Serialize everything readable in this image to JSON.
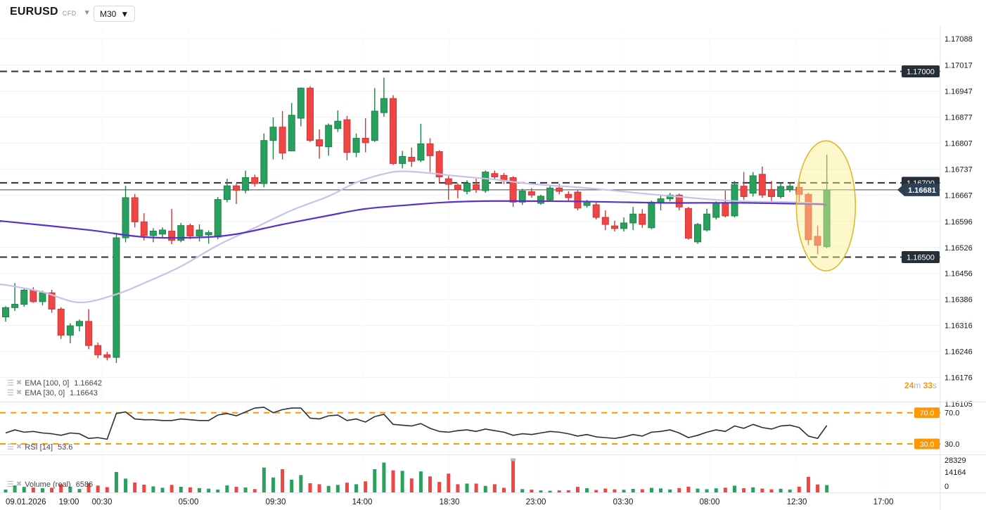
{
  "header": {
    "symbol": "EURUSD",
    "market_type": "CFD",
    "timeframe": "M30"
  },
  "timer": {
    "minutes": "24",
    "minutes_unit": "m",
    "seconds": "33",
    "seconds_unit": "s"
  },
  "panes": {
    "price": {
      "legend": [
        {
          "label": "EMA [100, 0]",
          "value": "1.16642"
        },
        {
          "label": "EMA [30, 0]",
          "value": "1.16643"
        }
      ],
      "axis_labels": [
        "1.17088",
        "1.17017",
        "1.16947",
        "1.16877",
        "1.16807",
        "1.16737",
        "1.16667",
        "1.16596",
        "1.16526",
        "1.16456",
        "1.16386",
        "1.16316",
        "1.16246",
        "1.16176",
        "1.16105"
      ],
      "level_tags": [
        {
          "text": "1.17000",
          "price": 1.17
        },
        {
          "text": "1.16700",
          "price": 1.167
        },
        {
          "text": "1.16500",
          "price": 1.165
        }
      ],
      "current_tag": {
        "text": "1.16681",
        "price": 1.16681
      }
    },
    "rsi": {
      "legend": {
        "label": "RSI [14]",
        "value": "53.6"
      },
      "level_tags": [
        {
          "text": "70.0",
          "value": 70
        },
        {
          "text": "30.0",
          "value": 30
        }
      ],
      "axis_labels": [
        {
          "text": "70.0",
          "value": 70
        },
        {
          "text": "30.0",
          "value": 30
        }
      ]
    },
    "volume": {
      "legend": {
        "label": "Volume (real)",
        "value": "6586"
      },
      "axis_labels": [
        {
          "text": "28329",
          "value": 28329
        },
        {
          "text": "14164",
          "value": 14164
        },
        {
          "text": "0",
          "value": 0
        }
      ]
    }
  },
  "time_axis": {
    "date_label": "09.01.2026",
    "labels": [
      "19:00",
      "00:30",
      "05:00",
      "09:30",
      "14:00",
      "18:30",
      "23:00",
      "03:30",
      "08:00",
      "12:30",
      "17:00"
    ]
  },
  "colors": {
    "up": "#2aa05f",
    "up_border": "#1f8049",
    "down": "#ef4545",
    "down_border": "#cf3737",
    "ema_fast": "#c9c2e8",
    "ema_slow": "#5a31c9",
    "level_line": "#2a2e39",
    "current_line": "#3c4653",
    "tag_dark": "#262e38",
    "tag_current": "#2e4154",
    "rsi_line": "#2a2e39",
    "rsi_level": "#ff9800",
    "tag_orange": "#ff9800",
    "grid": "#eef0f3",
    "divider": "#e0e3eb",
    "axis_text": "#131722",
    "highlight_fill": "rgba(250,240,140,0.45)",
    "highlight_stroke": "#ddb92e"
  },
  "chart_data": {
    "type": "candlestick",
    "title": "EURUSD CFD M30",
    "ylim": [
      1.16105,
      1.17088
    ],
    "grid": true,
    "y_axis_ticks": [
      1.17088,
      1.17017,
      1.16947,
      1.16877,
      1.16807,
      1.16737,
      1.16667,
      1.16596,
      1.16526,
      1.16456,
      1.16386,
      1.16316,
      1.16246,
      1.16176,
      1.16105
    ],
    "levels": [
      1.17,
      1.167,
      1.165
    ],
    "current_price": 1.16681,
    "rsi_levels": [
      70,
      30
    ],
    "rsi_current": 53.6,
    "volume_axis": [
      28329,
      14164,
      0
    ],
    "volume_current": 6586,
    "ema100_value": 1.16642,
    "ema30_value": 1.16643,
    "candles": [
      [
        1.16339,
        1.16368,
        1.16326,
        1.16364
      ],
      [
        1.16364,
        1.1643,
        1.16355,
        1.16373
      ],
      [
        1.16373,
        1.16415,
        1.16366,
        1.16411
      ],
      [
        1.16411,
        1.16419,
        1.16377,
        1.1638
      ],
      [
        1.1638,
        1.1641,
        1.1637,
        1.16404
      ],
      [
        1.16404,
        1.16412,
        1.1635,
        1.1636
      ],
      [
        1.1636,
        1.16365,
        1.1628,
        1.1629
      ],
      [
        1.1629,
        1.16322,
        1.16268,
        1.16315
      ],
      [
        1.16315,
        1.16332,
        1.163,
        1.16327
      ],
      [
        1.16327,
        1.1636,
        1.16252,
        1.16262
      ],
      [
        1.16262,
        1.1627,
        1.16228,
        1.16237
      ],
      [
        1.16237,
        1.16245,
        1.16222,
        1.1623
      ],
      [
        1.1623,
        1.16565,
        1.16215,
        1.16552
      ],
      [
        1.16552,
        1.16692,
        1.1654,
        1.1666
      ],
      [
        1.1666,
        1.1667,
        1.1658,
        1.16595
      ],
      [
        1.16595,
        1.16618,
        1.16545,
        1.16558
      ],
      [
        1.16558,
        1.16578,
        1.1654,
        1.1657
      ],
      [
        1.16562,
        1.1658,
        1.16552,
        1.16573
      ],
      [
        1.1657,
        1.1663,
        1.16535,
        1.16545
      ],
      [
        1.16545,
        1.16592,
        1.1654,
        1.16585
      ],
      [
        1.16585,
        1.1659,
        1.16548,
        1.16557
      ],
      [
        1.16557,
        1.16588,
        1.16542,
        1.16573
      ],
      [
        1.1656,
        1.16572,
        1.16536,
        1.16566
      ],
      [
        1.16554,
        1.16662,
        1.16548,
        1.16655
      ],
      [
        1.16655,
        1.16711,
        1.16648,
        1.16692
      ],
      [
        1.16692,
        1.16698,
        1.16643,
        1.1668
      ],
      [
        1.1668,
        1.16733,
        1.16672,
        1.16714
      ],
      [
        1.16714,
        1.16722,
        1.1669,
        1.16698
      ],
      [
        1.16698,
        1.16833,
        1.16688,
        1.16814
      ],
      [
        1.16814,
        1.16876,
        1.16763,
        1.1685
      ],
      [
        1.1685,
        1.16893,
        1.16763,
        1.1678
      ],
      [
        1.16786,
        1.16915,
        1.16786,
        1.16882
      ],
      [
        1.16874,
        1.16957,
        1.16852,
        1.16955
      ],
      [
        1.16955,
        1.1696,
        1.1681,
        1.16814
      ],
      [
        1.16816,
        1.16844,
        1.16765,
        1.16799
      ],
      [
        1.16797,
        1.1686,
        1.16773,
        1.16855
      ],
      [
        1.16846,
        1.16895,
        1.16837,
        1.16866
      ],
      [
        1.1687,
        1.1688,
        1.16761,
        1.16782
      ],
      [
        1.16782,
        1.16833,
        1.16769,
        1.1682
      ],
      [
        1.1682,
        1.16874,
        1.16782,
        1.16808
      ],
      [
        1.16814,
        1.16955,
        1.1681,
        1.16893
      ],
      [
        1.16889,
        1.16983,
        1.16878,
        1.16927
      ],
      [
        1.16927,
        1.16936,
        1.16748,
        1.16752
      ],
      [
        1.16752,
        1.16786,
        1.16739,
        1.16771
      ],
      [
        1.16769,
        1.16795,
        1.16743,
        1.16758
      ],
      [
        1.16761,
        1.16859,
        1.16756,
        1.16805
      ],
      [
        1.16805,
        1.1682,
        1.16729,
        1.16773
      ],
      [
        1.16784,
        1.16788,
        1.16701,
        1.16716
      ],
      [
        1.16711,
        1.16718,
        1.16654,
        1.16696
      ],
      [
        1.16694,
        1.16699,
        1.16658,
        1.16682
      ],
      [
        1.16677,
        1.16707,
        1.16669,
        1.16699
      ],
      [
        1.16695,
        1.16711,
        1.16673,
        1.16682
      ],
      [
        1.16679,
        1.16733,
        1.16673,
        1.16729
      ],
      [
        1.16725,
        1.16733,
        1.16711,
        1.16716
      ],
      [
        1.1672,
        1.16727,
        1.16697,
        1.16705
      ],
      [
        1.16714,
        1.16718,
        1.16635,
        1.16648
      ],
      [
        1.16648,
        1.16684,
        1.16641,
        1.16678
      ],
      [
        1.16676,
        1.16686,
        1.1666,
        1.16667
      ],
      [
        1.16645,
        1.16668,
        1.16641,
        1.16664
      ],
      [
        1.16654,
        1.16692,
        1.1665,
        1.16686
      ],
      [
        1.16686,
        1.16697,
        1.16669,
        1.16677
      ],
      [
        1.16669,
        1.16677,
        1.1665,
        1.1666
      ],
      [
        1.16675,
        1.1668,
        1.16626,
        1.16632
      ],
      [
        1.16639,
        1.16654,
        1.16633,
        1.16649
      ],
      [
        1.16641,
        1.16647,
        1.16601,
        1.16607
      ],
      [
        1.16607,
        1.16626,
        1.16573,
        1.16588
      ],
      [
        1.16584,
        1.16598,
        1.16569,
        1.16577
      ],
      [
        1.16577,
        1.16607,
        1.16569,
        1.16592
      ],
      [
        1.16592,
        1.16635,
        1.16573,
        1.16616
      ],
      [
        1.16616,
        1.16629,
        1.16579,
        1.16588
      ],
      [
        1.16579,
        1.16652,
        1.16575,
        1.16648
      ],
      [
        1.16648,
        1.16667,
        1.16626,
        1.16657
      ],
      [
        1.16657,
        1.16673,
        1.1665,
        1.16667
      ],
      [
        1.16667,
        1.16671,
        1.16626,
        1.16635
      ],
      [
        1.16631,
        1.16635,
        1.16547,
        1.16551
      ],
      [
        1.16541,
        1.16592,
        1.16536,
        1.16588
      ],
      [
        1.16573,
        1.1663,
        1.16569,
        1.16616
      ],
      [
        1.16607,
        1.1665,
        1.16601,
        1.16645
      ],
      [
        1.16645,
        1.16679,
        1.16607,
        1.16611
      ],
      [
        1.16611,
        1.16705,
        1.16607,
        1.16695
      ],
      [
        1.16691,
        1.16729,
        1.16654,
        1.16663
      ],
      [
        1.16672,
        1.16729,
        1.16663,
        1.16719
      ],
      [
        1.16723,
        1.16744,
        1.1666,
        1.16667
      ],
      [
        1.16682,
        1.16705,
        1.16651,
        1.16663
      ],
      [
        1.16663,
        1.16701,
        1.16658,
        1.1669
      ],
      [
        1.16682,
        1.16699,
        1.16675,
        1.16691
      ],
      [
        1.16688,
        1.16705,
        1.16645,
        1.16669
      ],
      [
        1.16669,
        1.16673,
        1.16532,
        1.16547
      ],
      [
        1.16556,
        1.16585,
        1.16508,
        1.16532
      ],
      [
        1.16528,
        1.16776,
        1.16524,
        1.16681
      ]
    ],
    "volumes": [
      2600,
      6300,
      5000,
      4400,
      3800,
      4200,
      7400,
      5200,
      3100,
      8300,
      6200,
      4800,
      18500,
      12500,
      9000,
      7000,
      5500,
      4200,
      6800,
      5100,
      4600,
      3900,
      3400,
      2600,
      6300,
      5000,
      4400,
      3000,
      22500,
      13500,
      21000,
      11500,
      15700,
      8300,
      7400,
      5900,
      6800,
      8800,
      7400,
      10000,
      21000,
      27000,
      20000,
      19500,
      12600,
      19000,
      14500,
      9500,
      17000,
      7400,
      8000,
      8000,
      5900,
      7400,
      4200,
      28329,
      3000,
      2500,
      1800,
      1500,
      1800,
      2000,
      5000,
      3800,
      2200,
      3500,
      2800,
      2400,
      3200,
      2900,
      4100,
      3600,
      2700,
      3900,
      5200,
      3400,
      2900,
      3700,
      4300,
      6100,
      3800,
      4600,
      3500,
      2800,
      3300,
      2600,
      5200,
      14100,
      7200,
      6586
    ],
    "rsi": [
      44,
      48,
      45,
      46,
      44,
      43,
      41,
      44,
      43,
      37,
      38,
      36,
      69,
      71,
      62,
      61,
      61,
      60,
      60,
      62,
      61,
      60,
      60,
      67,
      69,
      66,
      71,
      76,
      77,
      70,
      74,
      76,
      76,
      63,
      62,
      66,
      67,
      60,
      62,
      58,
      65,
      68,
      55,
      54,
      53,
      56,
      50,
      46,
      45,
      47,
      48,
      46,
      49,
      47,
      45,
      41,
      43,
      42,
      44,
      46,
      45,
      43,
      40,
      42,
      39,
      38,
      37,
      39,
      42,
      40,
      45,
      46,
      48,
      44,
      38,
      41,
      45,
      48,
      46,
      53,
      50,
      55,
      51,
      49,
      53,
      54,
      51,
      40,
      37,
      53.6
    ],
    "ema100_points": [
      [
        0,
        1.16596
      ],
      [
        9,
        1.16573
      ],
      [
        15,
        1.16554
      ],
      [
        21,
        1.16553
      ],
      [
        25,
        1.16562
      ],
      [
        30,
        1.16588
      ],
      [
        35,
        1.16612
      ],
      [
        39,
        1.1663
      ],
      [
        44,
        1.16641
      ],
      [
        48,
        1.16648
      ],
      [
        53,
        1.16651
      ],
      [
        62,
        1.1665
      ],
      [
        71,
        1.16646
      ],
      [
        80,
        1.16646
      ],
      [
        89,
        1.16642
      ]
    ],
    "ema30_points": [
      [
        0,
        1.16425
      ],
      [
        4,
        1.16406
      ],
      [
        8,
        1.16378
      ],
      [
        12,
        1.164
      ],
      [
        15,
        1.1643
      ],
      [
        19,
        1.16475
      ],
      [
        23,
        1.16532
      ],
      [
        27,
        1.16579
      ],
      [
        31,
        1.16626
      ],
      [
        35,
        1.16664
      ],
      [
        38,
        1.16701
      ],
      [
        41,
        1.16724
      ],
      [
        43,
        1.16731
      ],
      [
        46,
        1.16726
      ],
      [
        49,
        1.16718
      ],
      [
        53,
        1.16709
      ],
      [
        57,
        1.16697
      ],
      [
        63,
        1.16686
      ],
      [
        70,
        1.16669
      ],
      [
        76,
        1.16656
      ],
      [
        80,
        1.1665
      ],
      [
        85,
        1.16648
      ],
      [
        89,
        1.16643
      ]
    ],
    "highlight_ellipse": {
      "from_index": 85.7,
      "to_index": 92.1,
      "price_top": 1.16813,
      "price_bottom": 1.16463
    }
  }
}
